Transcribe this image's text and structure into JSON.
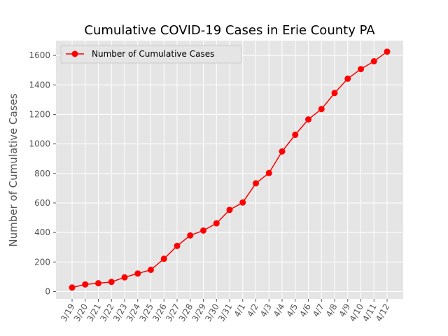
{
  "chart_data": {
    "type": "line",
    "title": "Cumulative COVID-19 Cases in Erie County PA",
    "xlabel": "",
    "ylabel": "Number of Cumulative Cases",
    "ylim": [
      -50,
      1700
    ],
    "yticks": [
      0,
      200,
      400,
      600,
      800,
      1000,
      1200,
      1400,
      1600
    ],
    "grid": true,
    "legend_position": "top-left",
    "categories": [
      "3/19",
      "3/20",
      "3/21",
      "3/22",
      "3/23",
      "3/24",
      "3/25",
      "3/26",
      "3/27",
      "3/28",
      "3/29",
      "3/30",
      "3/31",
      "4/1",
      "4/2",
      "4/3",
      "4/4",
      "4/5",
      "4/6",
      "4/7",
      "4/8",
      "4/9",
      "4/10",
      "4/11",
      "4/12"
    ],
    "series": [
      {
        "name": "Number of Cumulative Cases",
        "color": "#ff0000",
        "values": [
          27,
          48,
          56,
          65,
          96,
          122,
          147,
          222,
          309,
          380,
          413,
          462,
          553,
          603,
          733,
          803,
          949,
          1062,
          1166,
          1236,
          1345,
          1442,
          1507,
          1560,
          1625
        ]
      }
    ],
    "background": "#e5e5e5"
  }
}
